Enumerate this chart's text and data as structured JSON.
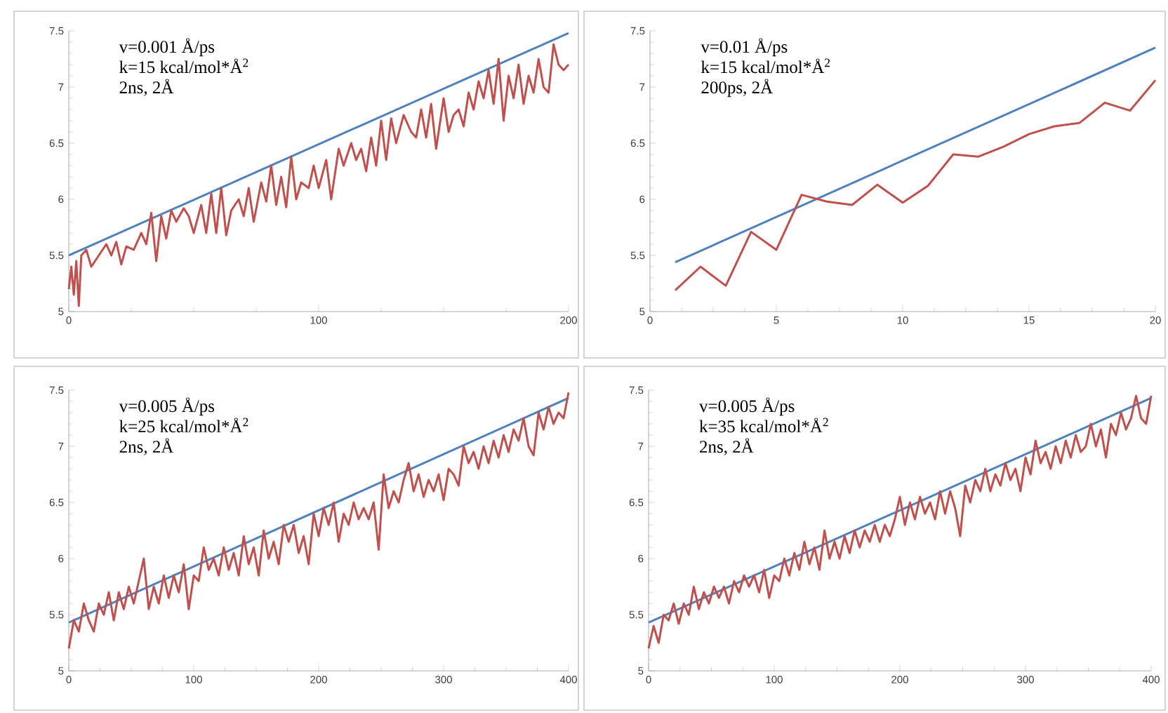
{
  "chart_data": [
    {
      "type": "line",
      "xlim": [
        0,
        200
      ],
      "ylim": [
        5,
        7.5
      ],
      "xticks": [
        0,
        100,
        200
      ],
      "yticks": [
        5,
        5.5,
        6,
        6.5,
        7,
        7.5
      ],
      "annotations": [
        "v=0.001 Å/ps",
        "k=15 kcal/mol*Å$^{2}$",
        "2ns, 2Å"
      ],
      "series": [
        {
          "color": "#4f81bd",
          "x": [
            0,
            200
          ],
          "values": [
            5.5,
            7.48
          ]
        },
        {
          "color": "#c0504d",
          "x": [
            0,
            1,
            2,
            3,
            4,
            5,
            7,
            9,
            12,
            15,
            17,
            19,
            21,
            23,
            26,
            29,
            31,
            33,
            35,
            37,
            39,
            41,
            43,
            46,
            48,
            50,
            53,
            55,
            57,
            59,
            61,
            63,
            65,
            68,
            70,
            72,
            74,
            77,
            79,
            81,
            83,
            85,
            87,
            89,
            91,
            93,
            96,
            98,
            100,
            103,
            105,
            108,
            110,
            113,
            115,
            117,
            119,
            121,
            123,
            125,
            127,
            129,
            131,
            134,
            137,
            139,
            141,
            143,
            145,
            147,
            150,
            152,
            154,
            156,
            158,
            160,
            162,
            164,
            166,
            168,
            170,
            172,
            174,
            176,
            178,
            180,
            182,
            184,
            186,
            188,
            190,
            192,
            194,
            196,
            198,
            200
          ],
          "values": [
            5.2,
            5.4,
            5.15,
            5.45,
            5.05,
            5.5,
            5.55,
            5.4,
            5.5,
            5.6,
            5.5,
            5.62,
            5.42,
            5.58,
            5.55,
            5.7,
            5.6,
            5.88,
            5.45,
            5.85,
            5.65,
            5.9,
            5.8,
            5.92,
            5.85,
            5.7,
            5.95,
            5.7,
            6.05,
            5.7,
            6.1,
            5.68,
            5.9,
            6.0,
            5.85,
            6.1,
            5.8,
            6.15,
            5.98,
            6.3,
            5.95,
            6.2,
            5.93,
            6.38,
            6.0,
            6.15,
            6.1,
            6.3,
            6.1,
            6.35,
            6.0,
            6.45,
            6.3,
            6.5,
            6.35,
            6.45,
            6.25,
            6.55,
            6.3,
            6.7,
            6.35,
            6.72,
            6.5,
            6.75,
            6.6,
            6.55,
            6.8,
            6.55,
            6.85,
            6.45,
            6.9,
            6.6,
            6.75,
            6.8,
            6.65,
            6.95,
            6.8,
            7.05,
            6.9,
            7.15,
            6.85,
            7.25,
            6.7,
            7.1,
            6.9,
            7.2,
            6.85,
            7.1,
            6.95,
            7.25,
            7.0,
            6.95,
            7.38,
            7.2,
            7.15,
            7.2
          ]
        }
      ]
    },
    {
      "type": "line",
      "xlim": [
        0,
        20
      ],
      "ylim": [
        5,
        7.5
      ],
      "xticks": [
        0,
        5,
        10,
        15,
        20
      ],
      "yticks": [
        5,
        5.5,
        6,
        6.5,
        7,
        7.5
      ],
      "annotations": [
        "v=0.01 Å/ps",
        "k=15 kcal/mol*Å$^{2}$",
        "200ps, 2Å"
      ],
      "series": [
        {
          "color": "#4f81bd",
          "x": [
            1,
            20
          ],
          "values": [
            5.44,
            7.35
          ]
        },
        {
          "color": "#c0504d",
          "x": [
            1,
            2,
            3,
            4,
            5,
            6,
            7,
            8,
            9,
            10,
            11,
            12,
            13,
            14,
            15,
            16,
            17,
            18,
            19,
            20
          ],
          "values": [
            5.19,
            5.4,
            5.23,
            5.71,
            5.55,
            6.04,
            5.98,
            5.95,
            6.13,
            5.97,
            6.12,
            6.4,
            6.38,
            6.47,
            6.58,
            6.65,
            6.68,
            6.86,
            6.79,
            7.06
          ]
        }
      ]
    },
    {
      "type": "line",
      "xlim": [
        0,
        400
      ],
      "ylim": [
        5,
        7.5
      ],
      "xticks": [
        0,
        100,
        200,
        300,
        400
      ],
      "yticks": [
        5,
        5.5,
        6,
        6.5,
        7,
        7.5
      ],
      "annotations": [
        "v=0.005 Å/ps",
        "k=25 kcal/mol*Å$^{2}$",
        "2ns, 2Å"
      ],
      "series": [
        {
          "color": "#4f81bd",
          "x": [
            0,
            400
          ],
          "values": [
            5.43,
            7.43
          ]
        },
        {
          "color": "#c0504d",
          "x": [
            0,
            4,
            8,
            12,
            16,
            20,
            24,
            28,
            32,
            36,
            40,
            44,
            48,
            52,
            56,
            60,
            64,
            68,
            72,
            76,
            80,
            84,
            88,
            92,
            96,
            100,
            104,
            108,
            112,
            116,
            120,
            124,
            128,
            132,
            136,
            140,
            144,
            148,
            152,
            156,
            160,
            164,
            168,
            172,
            176,
            180,
            184,
            188,
            192,
            196,
            200,
            204,
            208,
            212,
            216,
            220,
            224,
            228,
            232,
            236,
            240,
            244,
            248,
            252,
            256,
            260,
            264,
            268,
            272,
            276,
            280,
            284,
            288,
            292,
            296,
            300,
            304,
            308,
            312,
            316,
            320,
            324,
            328,
            332,
            336,
            340,
            344,
            348,
            352,
            356,
            360,
            364,
            368,
            372,
            376,
            380,
            384,
            388,
            392,
            396,
            400
          ],
          "values": [
            5.2,
            5.45,
            5.35,
            5.6,
            5.45,
            5.35,
            5.6,
            5.5,
            5.7,
            5.45,
            5.7,
            5.55,
            5.75,
            5.6,
            5.8,
            6.0,
            5.55,
            5.75,
            5.6,
            5.85,
            5.65,
            5.85,
            5.7,
            5.95,
            5.55,
            5.85,
            5.8,
            6.1,
            5.9,
            6.0,
            5.85,
            6.1,
            5.9,
            6.05,
            5.85,
            6.2,
            5.95,
            6.1,
            5.85,
            6.25,
            6.0,
            6.15,
            5.95,
            6.3,
            6.15,
            6.3,
            6.05,
            6.2,
            5.95,
            6.4,
            6.2,
            6.45,
            6.3,
            6.5,
            6.15,
            6.4,
            6.3,
            6.5,
            6.35,
            6.45,
            6.35,
            6.5,
            6.08,
            6.75,
            6.45,
            6.6,
            6.5,
            6.7,
            6.85,
            6.6,
            6.75,
            6.55,
            6.7,
            6.6,
            6.75,
            6.52,
            6.8,
            6.75,
            6.65,
            7.0,
            6.85,
            6.95,
            6.8,
            7.0,
            6.85,
            7.05,
            6.9,
            7.1,
            6.95,
            7.15,
            7.05,
            7.25,
            7.0,
            6.92,
            7.3,
            7.15,
            7.35,
            7.2,
            7.3,
            7.25,
            7.48
          ]
        }
      ]
    },
    {
      "type": "line",
      "xlim": [
        0,
        400
      ],
      "ylim": [
        5,
        7.5
      ],
      "xticks": [
        0,
        100,
        200,
        300,
        400
      ],
      "yticks": [
        5,
        5.5,
        6,
        6.5,
        7,
        7.5
      ],
      "annotations": [
        "v=0.005 Å/ps",
        "k=35 kcal/mol*Å$^{2}$",
        "2ns, 2Å"
      ],
      "series": [
        {
          "color": "#4f81bd",
          "x": [
            0,
            400
          ],
          "values": [
            5.43,
            7.43
          ]
        },
        {
          "color": "#c0504d",
          "x": [
            0,
            4,
            8,
            12,
            16,
            20,
            24,
            28,
            32,
            36,
            40,
            44,
            48,
            52,
            56,
            60,
            64,
            68,
            72,
            76,
            80,
            84,
            88,
            92,
            96,
            100,
            104,
            108,
            112,
            116,
            120,
            124,
            128,
            132,
            136,
            140,
            144,
            148,
            152,
            156,
            160,
            164,
            168,
            172,
            176,
            180,
            184,
            188,
            192,
            196,
            200,
            204,
            208,
            212,
            216,
            220,
            224,
            228,
            232,
            236,
            240,
            244,
            248,
            252,
            256,
            260,
            264,
            268,
            272,
            276,
            280,
            284,
            288,
            292,
            296,
            300,
            304,
            308,
            312,
            316,
            320,
            324,
            328,
            332,
            336,
            340,
            344,
            348,
            352,
            356,
            360,
            364,
            368,
            372,
            376,
            380,
            384,
            388,
            392,
            396,
            400
          ],
          "values": [
            5.2,
            5.4,
            5.25,
            5.5,
            5.45,
            5.6,
            5.42,
            5.6,
            5.5,
            5.75,
            5.55,
            5.7,
            5.6,
            5.75,
            5.65,
            5.75,
            5.6,
            5.8,
            5.7,
            5.85,
            5.75,
            5.85,
            5.7,
            5.9,
            5.65,
            5.85,
            5.8,
            6.0,
            5.85,
            6.05,
            5.9,
            6.15,
            5.95,
            6.1,
            5.9,
            6.25,
            6.0,
            6.15,
            6.0,
            6.2,
            6.05,
            6.25,
            6.1,
            6.25,
            6.15,
            6.3,
            6.15,
            6.3,
            6.2,
            6.35,
            6.55,
            6.3,
            6.5,
            6.35,
            6.55,
            6.4,
            6.5,
            6.35,
            6.6,
            6.4,
            6.6,
            6.45,
            6.2,
            6.65,
            6.5,
            6.7,
            6.6,
            6.8,
            6.6,
            6.75,
            6.65,
            6.85,
            6.7,
            6.8,
            6.6,
            6.9,
            6.75,
            7.05,
            6.85,
            6.95,
            6.8,
            7.0,
            6.85,
            7.05,
            6.9,
            7.1,
            6.95,
            7.0,
            7.2,
            7.0,
            7.15,
            6.9,
            7.2,
            7.1,
            7.3,
            7.15,
            7.25,
            7.45,
            7.25,
            7.2,
            7.45
          ]
        }
      ]
    }
  ]
}
